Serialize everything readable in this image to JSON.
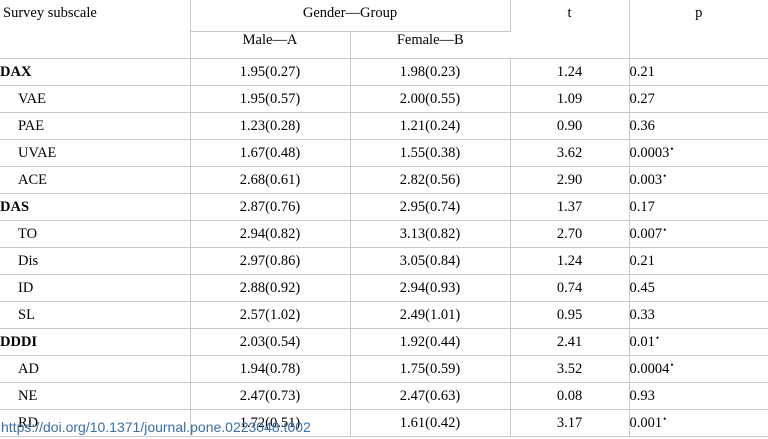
{
  "table": {
    "header": {
      "subscale": "Survey subscale",
      "group": "Gender—Group",
      "male": "Male—A",
      "female": "Female—B",
      "t": "t",
      "p": "p"
    },
    "rows": [
      {
        "label": "DAX",
        "male": "1.95(0.27)",
        "female": "1.98(0.23)",
        "t": "1.24",
        "p": "0.21",
        "sig": ""
      },
      {
        "label": "VAE",
        "male": "1.95(0.57)",
        "female": "2.00(0.55)",
        "t": "1.09",
        "p": "0.27",
        "sig": ""
      },
      {
        "label": "PAE",
        "male": "1.23(0.28)",
        "female": "1.21(0.24)",
        "t": "0.90",
        "p": "0.36",
        "sig": ""
      },
      {
        "label": "UVAE",
        "male": "1.67(0.48)",
        "female": "1.55(0.38)",
        "t": "3.62",
        "p": "0.0003",
        "sig": "•"
      },
      {
        "label": "ACE",
        "male": "2.68(0.61)",
        "female": "2.82(0.56)",
        "t": "2.90",
        "p": "0.003",
        "sig": "•"
      },
      {
        "label": "DAS",
        "male": "2.87(0.76)",
        "female": "2.95(0.74)",
        "t": "1.37",
        "p": "0.17",
        "sig": ""
      },
      {
        "label": "TO",
        "male": "2.94(0.82)",
        "female": "3.13(0.82)",
        "t": "2.70",
        "p": "0.007",
        "sig": "•"
      },
      {
        "label": "Dis",
        "male": "2.97(0.86)",
        "female": "3.05(0.84)",
        "t": "1.24",
        "p": "0.21",
        "sig": ""
      },
      {
        "label": "ID",
        "male": "2.88(0.92)",
        "female": "2.94(0.93)",
        "t": "0.74",
        "p": "0.45",
        "sig": ""
      },
      {
        "label": "SL",
        "male": "2.57(1.02)",
        "female": "2.49(1.01)",
        "t": "0.95",
        "p": "0.33",
        "sig": ""
      },
      {
        "label": "DDDI",
        "male": "2.03(0.54)",
        "female": "1.92(0.44)",
        "t": "2.41",
        "p": "0.01",
        "sig": "•"
      },
      {
        "label": "AD",
        "male": "1.94(0.78)",
        "female": "1.75(0.59)",
        "t": "3.52",
        "p": "0.0004",
        "sig": "•"
      },
      {
        "label": "NE",
        "male": "2.47(0.73)",
        "female": "2.47(0.63)",
        "t": "0.08",
        "p": "0.93",
        "sig": ""
      },
      {
        "label": "RD",
        "male": "1.72(0.51)",
        "female": "1.61(0.42)",
        "t": "3.17",
        "p": "0.001",
        "sig": "•"
      }
    ]
  },
  "doi_link": "https://doi.org/10.1371/journal.pone.0223048.t002"
}
